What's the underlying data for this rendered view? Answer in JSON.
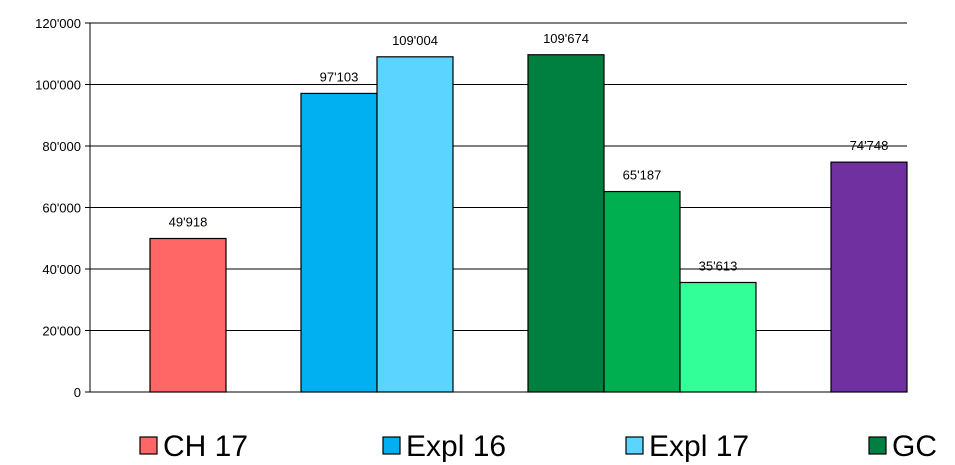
{
  "chart_data": {
    "type": "bar",
    "ylim": [
      0,
      120000
    ],
    "yticks": [
      0,
      20000,
      40000,
      60000,
      80000,
      100000,
      120000
    ],
    "ytick_labels": [
      "0",
      "20'000",
      "40'000",
      "60'000",
      "80'000",
      "100'000",
      "120'000"
    ],
    "grid": true,
    "legend": "bottom",
    "bars": [
      {
        "series": "CH 17",
        "value": 49918,
        "label": "49'918",
        "color": "#ff6666"
      },
      {
        "series": "Expl 16",
        "value": 97103,
        "label": "97'103",
        "color": "#00b0f0"
      },
      {
        "series": "Expl 17",
        "value": 109004,
        "label": "109'004",
        "color": "#5bd5ff"
      },
      {
        "series": "GC",
        "value": 109674,
        "label": "109'674",
        "color": "#008040"
      },
      {
        "series": "",
        "value": 65187,
        "label": "65'187",
        "color": "#00b050"
      },
      {
        "series": "",
        "value": 35613,
        "label": "35'613",
        "color": "#33ff99"
      },
      {
        "series": "",
        "value": 74748,
        "label": "74'748",
        "color": "#7030a0"
      }
    ],
    "legend_entries": [
      {
        "name": "CH 17",
        "color": "#ff6666"
      },
      {
        "name": "Expl 16",
        "color": "#00b0f0"
      },
      {
        "name": "Expl 17",
        "color": "#5bd5ff"
      },
      {
        "name": "GC",
        "color": "#008040"
      }
    ]
  }
}
